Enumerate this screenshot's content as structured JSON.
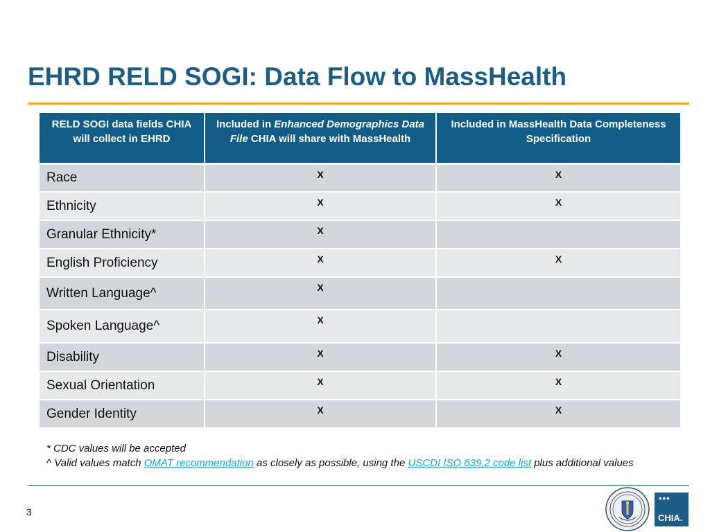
{
  "slide": {
    "title": "EHRD RELD SOGI: Data Flow to MassHealth",
    "page_number": "3"
  },
  "table": {
    "headers": [
      {
        "parts": [
          "RELD SOGI data fields CHIA will collect in EHRD"
        ]
      },
      {
        "parts": [
          "Included in ",
          "Enhanced Demographics Data File",
          " CHIA will share with MassHealth"
        ]
      },
      {
        "parts": [
          "Included in MassHealth Data Completeness Specification"
        ]
      }
    ],
    "rows": [
      {
        "field": "Race",
        "enhanced": "X",
        "masshealth": "X"
      },
      {
        "field": "Ethnicity",
        "enhanced": "X",
        "masshealth": "X"
      },
      {
        "field": "Granular Ethnicity*",
        "enhanced": "X",
        "masshealth": ""
      },
      {
        "field": "English Proficiency",
        "enhanced": "X",
        "masshealth": "X"
      },
      {
        "field": "Written Language^",
        "enhanced": "X",
        "masshealth": ""
      },
      {
        "field": "Spoken Language^",
        "enhanced": "X",
        "masshealth": ""
      },
      {
        "field": "Disability",
        "enhanced": "X",
        "masshealth": "X"
      },
      {
        "field": "Sexual Orientation",
        "enhanced": "X",
        "masshealth": "X"
      },
      {
        "field": "Gender Identity",
        "enhanced": "X",
        "masshealth": "X"
      }
    ]
  },
  "footnotes": {
    "cdc": "* CDC values will be accepted",
    "valid_prefix": "^ Valid values match ",
    "qmat_link": "QMAT recommendation",
    "valid_middle": " as closely as possible, using the ",
    "uscdi_link": "USCDI ISO 639.2 code list",
    "valid_suffix": " plus additional values"
  },
  "logos": {
    "seal_icon": "massachusetts-seal-icon",
    "chia_dots": "•••",
    "chia_word": "CHIA."
  },
  "colors": {
    "title": "#1c5c85",
    "accent_rule": "#f0a22e",
    "header_bg": "#115d87",
    "row_dark": "#d3d7db",
    "row_light": "#e7e9eb",
    "link": "#1aa3d4"
  }
}
